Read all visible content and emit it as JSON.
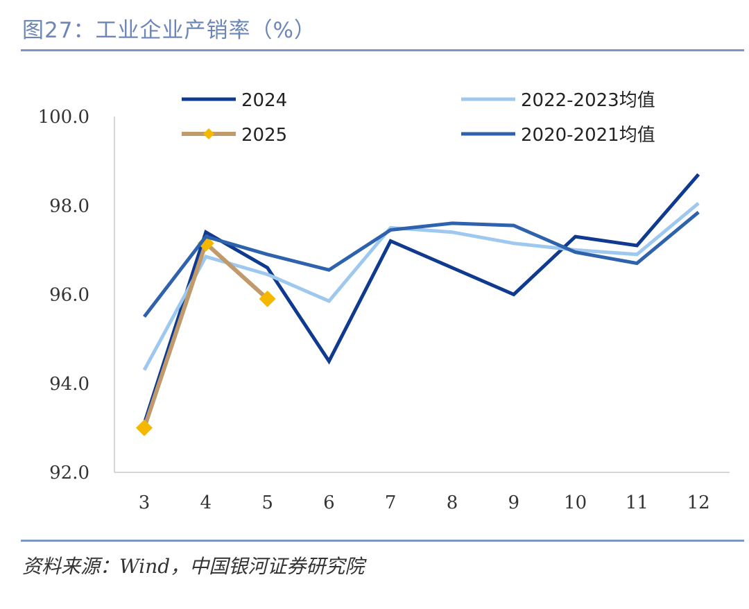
{
  "header": {
    "title": "图27：工业企业产销率（%）"
  },
  "footer": {
    "source": "资料来源：Wind，中国银河证券研究院"
  },
  "chart_data": {
    "type": "line",
    "title": "图27：工业企业产销率（%）",
    "categories": [
      "3",
      "4",
      "5",
      "6",
      "7",
      "8",
      "9",
      "10",
      "11",
      "12"
    ],
    "ylim": [
      92.0,
      100.0
    ],
    "yticks": [
      "92.0",
      "94.0",
      "96.0",
      "98.0",
      "100.0"
    ],
    "grid": false,
    "legend_position": "top",
    "series": [
      {
        "name": "2024",
        "color": "#0f3a8f",
        "values": [
          93.1,
          97.4,
          96.6,
          94.5,
          97.2,
          96.6,
          96.0,
          97.3,
          97.1,
          98.7
        ]
      },
      {
        "name": "2022-2023均值",
        "color": "#9ec8ee",
        "values": [
          94.3,
          96.85,
          96.45,
          95.85,
          97.5,
          97.4,
          97.15,
          97.0,
          96.9,
          98.05
        ]
      },
      {
        "name": "2025",
        "color": "#c09a6b",
        "marker_color": "#f5b800",
        "marker": "diamond",
        "values": [
          93.0,
          97.15,
          95.9,
          null,
          null,
          null,
          null,
          null,
          null,
          null
        ]
      },
      {
        "name": "2020-2021均值",
        "color": "#2e62ac",
        "values": [
          95.5,
          97.3,
          96.9,
          96.55,
          97.45,
          97.6,
          97.55,
          96.95,
          96.7,
          97.85
        ]
      }
    ]
  }
}
